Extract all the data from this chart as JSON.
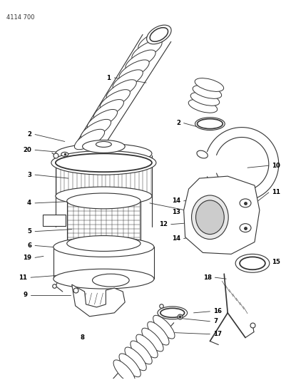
{
  "title": "4114 700",
  "background_color": "#ffffff",
  "line_color": "#333333",
  "label_color": "#000000",
  "fig_width": 4.08,
  "fig_height": 5.33,
  "dpi": 100
}
